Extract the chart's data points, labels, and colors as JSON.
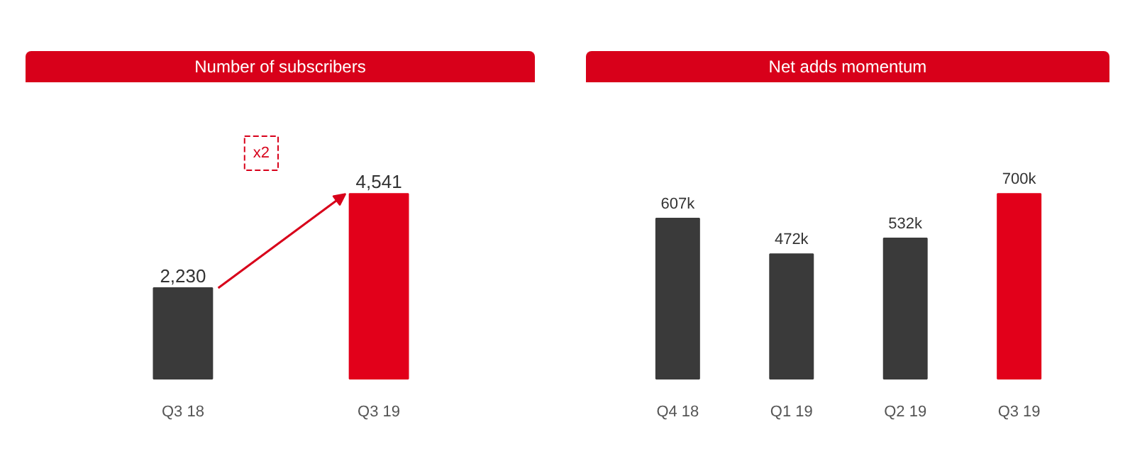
{
  "chart_data": [
    {
      "type": "bar",
      "title": "Number of subscribers",
      "categories": [
        "Q3 18",
        "Q3 19"
      ],
      "values": [
        2230,
        4541
      ],
      "colors": [
        "#3a3a3a",
        "#e2001a"
      ],
      "value_labels": [
        "2,230",
        "4,541"
      ],
      "annotations": [
        "x2"
      ],
      "tick_labels": "x"
    },
    {
      "type": "bar",
      "title": "Net adds momentum",
      "categories": [
        "Q4 18",
        "Q1 19",
        "Q2 19",
        "Q3 19"
      ],
      "values": [
        607,
        472,
        532,
        700
      ],
      "colors": [
        "#3a3a3a",
        "#3a3a3a",
        "#3a3a3a",
        "#e2001a"
      ],
      "value_labels": [
        "607k",
        "472k",
        "532k",
        "700k"
      ],
      "tick_labels": "x"
    }
  ]
}
